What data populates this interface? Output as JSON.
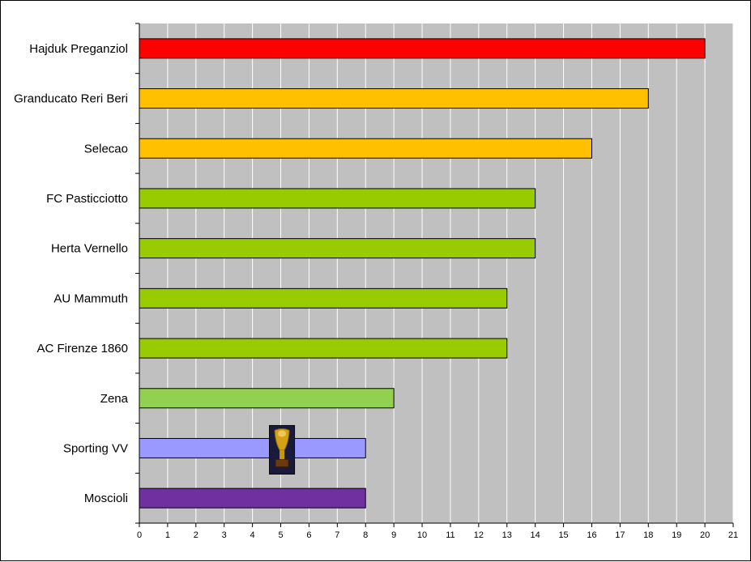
{
  "chart_data": {
    "type": "bar",
    "orientation": "horizontal",
    "title": "",
    "xlabel": "",
    "ylabel": "",
    "categories": [
      "Hajduk Preganziol",
      "Granducato Reri Beri",
      "Selecao",
      "FC Pasticciotto",
      "Herta Vernello",
      "AU Mammuth",
      "AC Firenze 1860",
      "Zena",
      "Sporting VV",
      "Moscioli"
    ],
    "values": [
      20,
      18,
      16,
      14,
      14,
      13,
      13,
      9,
      8,
      8
    ],
    "bar_colors": [
      "#ff0000",
      "#ffc000",
      "#ffc000",
      "#99cc00",
      "#99cc00",
      "#99cc00",
      "#99cc00",
      "#92d050",
      "#9999ff",
      "#7030a0"
    ],
    "xlim": [
      0,
      21
    ],
    "xticks": [
      "0",
      "1",
      "2",
      "3",
      "4",
      "5",
      "6",
      "7",
      "8",
      "9",
      "10",
      "11",
      "12",
      "13",
      "14",
      "15",
      "16",
      "17",
      "18",
      "19",
      "20",
      "21"
    ],
    "grid": "vertical",
    "plot_background": "#c0c0c0",
    "grid_color": "#ffffff",
    "legend": "none",
    "annotation_icon": "trophy-icon"
  }
}
